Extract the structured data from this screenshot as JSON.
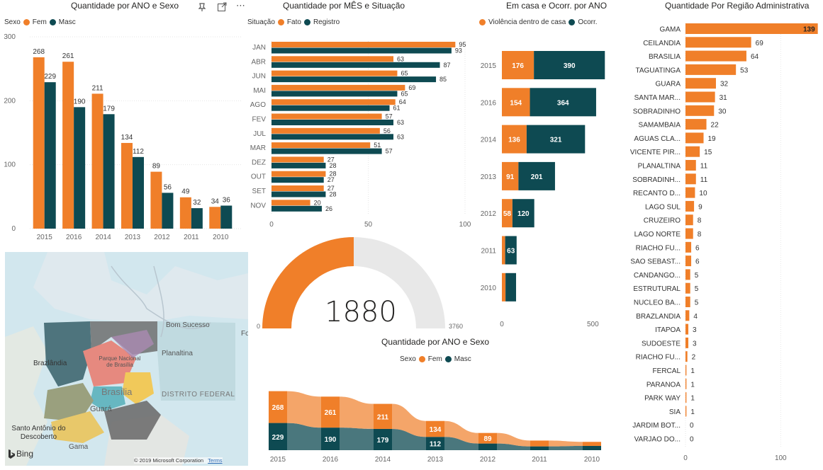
{
  "colors": {
    "orange": "#f07f29",
    "teal": "#0e4a52",
    "grid": "#e6e6e6",
    "gauge_empty": "#e8e8e8",
    "map_bg": "#d2e7ee"
  },
  "toolbar": {
    "pin_icon": "pin-icon",
    "focus_icon": "focus-mode-icon",
    "more_icon": "more-options-icon",
    "more_label": "⋯"
  },
  "chart1": {
    "title": "Quantidade por ANO e Sexo",
    "legend_title": "Sexo",
    "legend": [
      "Fem",
      "Masc"
    ]
  },
  "chart2": {
    "title": "Quantidade por MÊS e Situação",
    "legend_title": "Situação",
    "legend": [
      "Fato",
      "Registro"
    ]
  },
  "chart3": {
    "title": "Em casa e Ocorr. por ANO",
    "legend": [
      "Violência dentro de casa",
      "Ocorr."
    ]
  },
  "chart4": {
    "title": "Quantidade Por Região Administrativa"
  },
  "gauge": {
    "value": "1880",
    "min": "0",
    "max": "3760"
  },
  "chart6": {
    "title": "Quantidade por ANO e Sexo",
    "legend_title": "Sexo",
    "legend": [
      "Fem",
      "Masc"
    ]
  },
  "map": {
    "labels": [
      "Bom Sucesso",
      "Planaltina",
      "Parque Nacional de Brasília",
      "Brasília",
      "Guará",
      "DISTRITO FEDERAL",
      "Brazlândia",
      "Santo Antônio do Descoberto",
      "Gama",
      "Fo"
    ],
    "bing": "Bing",
    "copyright": "© 2019 Microsoft Corporation",
    "terms": "Terms"
  },
  "chart_data": [
    {
      "type": "bar",
      "title": "Quantidade por ANO e Sexo",
      "categories": [
        "2015",
        "2016",
        "2014",
        "2013",
        "2012",
        "2011",
        "2010"
      ],
      "series": [
        {
          "name": "Fem",
          "values": [
            268,
            261,
            211,
            134,
            89,
            49,
            34
          ]
        },
        {
          "name": "Masc",
          "values": [
            229,
            190,
            179,
            112,
            56,
            32,
            36
          ]
        }
      ],
      "ylim": [
        0,
        300
      ],
      "yticks": [
        0,
        100,
        200,
        300
      ],
      "grid": true,
      "legend": "top-left"
    },
    {
      "type": "bar",
      "orientation": "horizontal",
      "title": "Quantidade por MÊS e Situação",
      "categories": [
        "JAN",
        "ABR",
        "JUN",
        "MAI",
        "AGO",
        "FEV",
        "JUL",
        "MAR",
        "DEZ",
        "OUT",
        "SET",
        "NOV"
      ],
      "series": [
        {
          "name": "Fato",
          "values": [
            95,
            63,
            65,
            69,
            64,
            57,
            56,
            51,
            27,
            28,
            27,
            20
          ]
        },
        {
          "name": "Registro",
          "values": [
            93,
            87,
            85,
            65,
            61,
            63,
            63,
            57,
            28,
            27,
            28,
            26
          ]
        }
      ],
      "xlim": [
        0,
        100
      ],
      "xticks": [
        0,
        50,
        100
      ],
      "grid": true,
      "legend": "top-left"
    },
    {
      "type": "bar",
      "orientation": "horizontal",
      "stacked": true,
      "title": "Em casa e Ocorr. por ANO",
      "categories": [
        "2015",
        "2016",
        "2014",
        "2013",
        "2012",
        "2011",
        "2010"
      ],
      "series": [
        {
          "name": "Violência dentro de casa",
          "values": [
            176,
            154,
            136,
            91,
            58,
            18,
            20
          ]
        },
        {
          "name": "Ocorr.",
          "values": [
            390,
            364,
            321,
            201,
            120,
            63,
            58
          ]
        }
      ],
      "data_labels": [
        [
          "176",
          "390"
        ],
        [
          "154",
          "364"
        ],
        [
          "136",
          "321"
        ],
        [
          "91",
          "201"
        ],
        [
          "58",
          "120"
        ],
        [
          "",
          "63"
        ],
        [
          "",
          ""
        ]
      ],
      "xlim": [
        0,
        600
      ],
      "xticks": [
        0,
        500
      ],
      "legend": "top-left"
    },
    {
      "type": "bar",
      "orientation": "horizontal",
      "title": "Quantidade Por Região Administrativa",
      "categories": [
        "GAMA",
        "CEILANDIA",
        "BRASILIA",
        "TAGUATINGA",
        "GUARA",
        "SANTA MAR...",
        "SOBRADINHO",
        "SAMAMBAIA",
        "AGUAS CLA...",
        "VICENTE PIR...",
        "PLANALTINA",
        "SOBRADINH...",
        "RECANTO D...",
        "LAGO SUL",
        "CRUZEIRO",
        "LAGO NORTE",
        "RIACHO FU...",
        "SAO SEBAST...",
        "CANDANGO...",
        "ESTRUTURAL",
        "NUCLEO BA...",
        "BRAZLANDIA",
        "ITAPOA",
        "SUDOESTE",
        "RIACHO FU...",
        "FERCAL",
        "PARANOA",
        "PARK WAY",
        "SIA",
        "JARDIM BOT...",
        "VARJAO DO..."
      ],
      "values": [
        139,
        69,
        64,
        53,
        32,
        31,
        30,
        22,
        19,
        15,
        11,
        11,
        10,
        9,
        8,
        8,
        6,
        6,
        5,
        5,
        5,
        4,
        3,
        3,
        2,
        1,
        1,
        1,
        1,
        0,
        0
      ],
      "xlim": [
        0,
        140
      ],
      "xticks": [
        0,
        100
      ],
      "grid": true
    },
    {
      "type": "area",
      "title": "Quantidade por ANO e Sexo",
      "categories": [
        "2015",
        "2016",
        "2014",
        "2013",
        "2012",
        "2011",
        "2010"
      ],
      "series": [
        {
          "name": "Fem",
          "values": [
            268,
            261,
            211,
            134,
            89,
            49,
            34
          ]
        },
        {
          "name": "Masc",
          "values": [
            229,
            190,
            179,
            112,
            56,
            32,
            36
          ]
        }
      ],
      "legend": "top-center",
      "note": "ribbon chart"
    }
  ]
}
